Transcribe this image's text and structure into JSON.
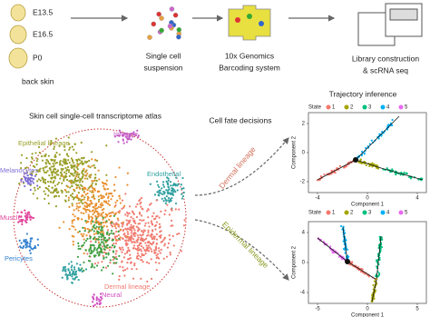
{
  "workflow": {
    "samples": [
      "E13.5",
      "E16.5",
      "P0"
    ],
    "tissue": "back skin",
    "steps": [
      {
        "lines": [
          "Single cell",
          "suspension"
        ]
      },
      {
        "lines": [
          "10x Genomics",
          "Barcoding system"
        ]
      },
      {
        "lines": [
          "Library construction",
          "& scRNA seq"
        ]
      }
    ]
  },
  "atlas": {
    "title": "Skin cell single-cell transcriptome atlas",
    "clusters": [
      {
        "label": "Immune",
        "color": "#c65fc6"
      },
      {
        "label": "Epithelial lineage",
        "color": "#9aa02a"
      },
      {
        "label": "Endothelial",
        "color": "#2f9f9f"
      },
      {
        "label": "Melanocytes",
        "color": "#7f6fd6"
      },
      {
        "label": "Muscle",
        "color": "#e0449a"
      },
      {
        "label": "Pericytes",
        "color": "#2f7fd0"
      },
      {
        "label": "Dermal lineage",
        "color": "#f07b70"
      },
      {
        "label": "Neural",
        "color": "#d050c0"
      }
    ]
  },
  "fate": {
    "title": "Cell fate decisions",
    "branches": [
      "Dermal lineage",
      "Epidermal lineage"
    ]
  },
  "trajectory": {
    "title": "Trajectory inference",
    "plots": [
      {
        "legend_title": "State",
        "states": [
          "1",
          "2",
          "3",
          "4",
          "5"
        ],
        "x_label": "Component 1",
        "y_label": "Component 2",
        "xticks": [
          "-4",
          "0",
          "4"
        ],
        "yticks": [
          "2",
          "0",
          "-2"
        ]
      },
      {
        "legend_title": "State",
        "states": [
          "1",
          "2",
          "3",
          "4",
          "5"
        ],
        "x_label": "Component 1",
        "y_label": "Component 2",
        "xticks": [
          "-5",
          "0",
          "5"
        ],
        "yticks": [
          "4",
          "0",
          "-4"
        ]
      }
    ]
  }
}
